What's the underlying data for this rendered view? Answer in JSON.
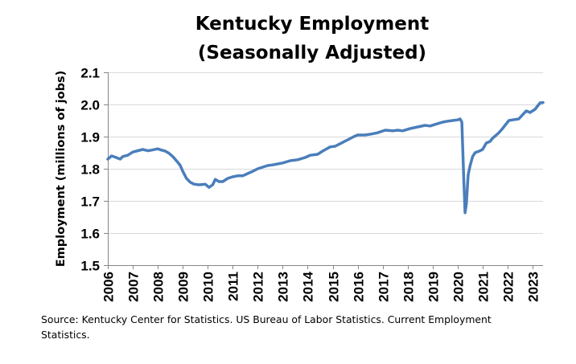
{
  "chart_data": {
    "type": "line",
    "title": [
      "Kentucky Employment",
      "(Seasonally Adjusted)"
    ],
    "xlabel": "",
    "ylabel": "Employment (millions of jobs)",
    "ylim": [
      1.5,
      2.1
    ],
    "yticks": [
      "1.5",
      "1.6",
      "1.7",
      "1.8",
      "1.9",
      "2.0",
      "2.1"
    ],
    "ytick_values": [
      1.5,
      1.6,
      1.7,
      1.8,
      1.9,
      2.0,
      2.1
    ],
    "xlim": [
      2006.0,
      2023.42
    ],
    "xticks": [
      "2006",
      "2007",
      "2008",
      "2009",
      "2010",
      "2011",
      "2012",
      "2013",
      "2014",
      "2015",
      "2016",
      "2017",
      "2018",
      "2019",
      "2020",
      "2021",
      "2022",
      "2023"
    ],
    "xtick_values": [
      2006,
      2007,
      2008,
      2009,
      2010,
      2011,
      2012,
      2013,
      2014,
      2015,
      2016,
      2017,
      2018,
      2019,
      2020,
      2021,
      2022,
      2023
    ],
    "grid": "horizontal",
    "legend": "none",
    "line_color": "#4A7EBB",
    "series": [
      {
        "name": "Kentucky Employment",
        "x": [
          2006.0,
          2006.15,
          2006.3,
          2006.5,
          2006.6,
          2006.8,
          2007.0,
          2007.15,
          2007.4,
          2007.6,
          2007.75,
          2008.0,
          2008.15,
          2008.3,
          2008.45,
          2008.6,
          2008.8,
          2008.9,
          2009.0,
          2009.15,
          2009.3,
          2009.45,
          2009.65,
          2009.9,
          2010.05,
          2010.2,
          2010.3,
          2010.45,
          2010.6,
          2010.8,
          2011.0,
          2011.2,
          2011.4,
          2011.6,
          2011.8,
          2012.0,
          2012.2,
          2012.4,
          2012.6,
          2012.8,
          2013.0,
          2013.3,
          2013.6,
          2013.9,
          2014.1,
          2014.4,
          2014.6,
          2014.9,
          2015.1,
          2015.3,
          2015.6,
          2015.85,
          2016.0,
          2016.3,
          2016.55,
          2016.8,
          2017.1,
          2017.4,
          2017.6,
          2017.8,
          2018.1,
          2018.4,
          2018.7,
          2018.9,
          2019.1,
          2019.4,
          2019.6,
          2019.8,
          2020.0,
          2020.1,
          2020.17,
          2020.25,
          2020.3,
          2020.35,
          2020.42,
          2020.5,
          2020.6,
          2020.7,
          2020.9,
          2021.0,
          2021.15,
          2021.3,
          2021.4,
          2021.55,
          2021.65,
          2021.8,
          2022.05,
          2022.2,
          2022.45,
          2022.6,
          2022.75,
          2022.9,
          2023.1,
          2023.3,
          2023.42
        ],
        "values": [
          1.83,
          1.84,
          1.836,
          1.83,
          1.838,
          1.842,
          1.852,
          1.855,
          1.86,
          1.856,
          1.858,
          1.862,
          1.858,
          1.855,
          1.848,
          1.838,
          1.82,
          1.81,
          1.792,
          1.77,
          1.758,
          1.752,
          1.75,
          1.752,
          1.742,
          1.75,
          1.767,
          1.76,
          1.76,
          1.77,
          1.775,
          1.778,
          1.778,
          1.785,
          1.792,
          1.8,
          1.805,
          1.81,
          1.812,
          1.815,
          1.818,
          1.825,
          1.828,
          1.835,
          1.842,
          1.845,
          1.855,
          1.868,
          1.87,
          1.878,
          1.89,
          1.9,
          1.905,
          1.905,
          1.908,
          1.912,
          1.92,
          1.918,
          1.92,
          1.918,
          1.925,
          1.93,
          1.935,
          1.933,
          1.938,
          1.945,
          1.948,
          1.95,
          1.952,
          1.955,
          1.945,
          1.76,
          1.663,
          1.69,
          1.78,
          1.81,
          1.838,
          1.85,
          1.856,
          1.86,
          1.88,
          1.885,
          1.895,
          1.905,
          1.912,
          1.925,
          1.95,
          1.952,
          1.955,
          1.968,
          1.98,
          1.975,
          1.985,
          2.005,
          2.006
        ]
      }
    ]
  },
  "source_note": "Source: Kentucky Center for Statistics. US Bureau of Labor Statistics. Current Employment Statistics."
}
